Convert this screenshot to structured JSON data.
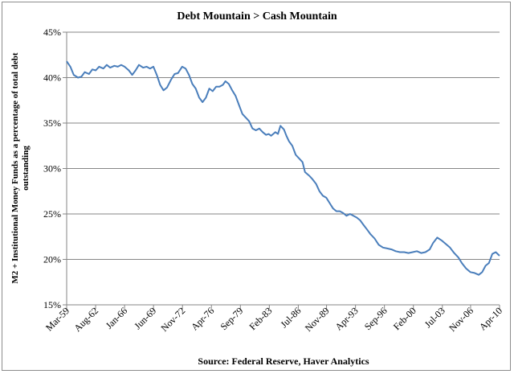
{
  "chart_data": {
    "type": "line",
    "title": "Debt Mountain > Cash Mountain",
    "ylabel_lines": [
      "M2 + Institutional Money Funds as a percentage of total debt",
      "outstanding"
    ],
    "xlabel": "",
    "source": "Source:  Federal Reserve, Haver Analytics",
    "ylim": [
      15,
      45
    ],
    "y_ticks": [
      15,
      20,
      25,
      30,
      35,
      40,
      45
    ],
    "y_tick_labels": [
      "15%",
      "20%",
      "25%",
      "30%",
      "35%",
      "40%",
      "45%"
    ],
    "xlim": [
      1959.167,
      2010.25
    ],
    "x_ticks": [
      1959.167,
      1962.583,
      1966.0,
      1969.417,
      1972.833,
      1976.25,
      1979.667,
      1983.083,
      1986.5,
      1989.833,
      1993.25,
      1996.667,
      2000.083,
      2003.5,
      2006.833,
      2010.25
    ],
    "x_tick_labels": [
      "Mar-59",
      "Aug-62",
      "Jan-66",
      "Jun-69",
      "Nov-72",
      "Apr-76",
      "Sep-79",
      "Feb-83",
      "Jul-86",
      "Nov-89",
      "Apr-93",
      "Sep-96",
      "Feb-00",
      "Jul-03",
      "Nov-06",
      "Apr-10"
    ],
    "grid": "horizontal",
    "legend": "none",
    "series": [
      {
        "color": "#4a7ebb",
        "points": [
          [
            1959.17,
            41.8
          ],
          [
            1959.6,
            41.2
          ],
          [
            1960.0,
            40.3
          ],
          [
            1960.5,
            40.0
          ],
          [
            1960.9,
            40.1
          ],
          [
            1961.3,
            40.6
          ],
          [
            1961.8,
            40.4
          ],
          [
            1962.2,
            40.9
          ],
          [
            1962.6,
            40.8
          ],
          [
            1963.0,
            41.2
          ],
          [
            1963.5,
            41.0
          ],
          [
            1963.9,
            41.4
          ],
          [
            1964.3,
            41.1
          ],
          [
            1964.8,
            41.3
          ],
          [
            1965.2,
            41.2
          ],
          [
            1965.6,
            41.4
          ],
          [
            1966.0,
            41.2
          ],
          [
            1966.5,
            40.8
          ],
          [
            1966.9,
            40.3
          ],
          [
            1967.3,
            40.8
          ],
          [
            1967.7,
            41.4
          ],
          [
            1968.2,
            41.1
          ],
          [
            1968.6,
            41.2
          ],
          [
            1969.0,
            41.0
          ],
          [
            1969.4,
            41.2
          ],
          [
            1969.8,
            40.3
          ],
          [
            1970.2,
            39.2
          ],
          [
            1970.6,
            38.6
          ],
          [
            1971.0,
            38.9
          ],
          [
            1971.5,
            39.8
          ],
          [
            1971.9,
            40.4
          ],
          [
            1972.3,
            40.5
          ],
          [
            1972.8,
            41.2
          ],
          [
            1973.2,
            41.0
          ],
          [
            1973.6,
            40.3
          ],
          [
            1974.0,
            39.3
          ],
          [
            1974.4,
            38.8
          ],
          [
            1974.8,
            37.8
          ],
          [
            1975.2,
            37.3
          ],
          [
            1975.6,
            37.8
          ],
          [
            1976.0,
            38.8
          ],
          [
            1976.4,
            38.5
          ],
          [
            1976.8,
            39.0
          ],
          [
            1977.2,
            39.0
          ],
          [
            1977.6,
            39.2
          ],
          [
            1977.9,
            39.6
          ],
          [
            1978.3,
            39.3
          ],
          [
            1978.7,
            38.6
          ],
          [
            1979.1,
            38.0
          ],
          [
            1979.5,
            37.0
          ],
          [
            1979.9,
            36.0
          ],
          [
            1980.3,
            35.6
          ],
          [
            1980.7,
            35.2
          ],
          [
            1981.1,
            34.4
          ],
          [
            1981.5,
            34.2
          ],
          [
            1981.9,
            34.4
          ],
          [
            1982.3,
            34.0
          ],
          [
            1982.7,
            33.7
          ],
          [
            1983.0,
            33.8
          ],
          [
            1983.3,
            33.6
          ],
          [
            1983.8,
            34.0
          ],
          [
            1984.1,
            33.8
          ],
          [
            1984.4,
            34.7
          ],
          [
            1984.8,
            34.3
          ],
          [
            1985.1,
            33.6
          ],
          [
            1985.4,
            33.0
          ],
          [
            1985.8,
            32.5
          ],
          [
            1986.2,
            31.5
          ],
          [
            1986.6,
            31.1
          ],
          [
            1987.0,
            30.7
          ],
          [
            1987.3,
            29.6
          ],
          [
            1987.8,
            29.2
          ],
          [
            1988.2,
            28.8
          ],
          [
            1988.6,
            28.3
          ],
          [
            1989.0,
            27.5
          ],
          [
            1989.4,
            27.0
          ],
          [
            1989.8,
            26.8
          ],
          [
            1990.2,
            26.2
          ],
          [
            1990.6,
            25.6
          ],
          [
            1991.0,
            25.3
          ],
          [
            1991.4,
            25.3
          ],
          [
            1991.8,
            25.1
          ],
          [
            1992.2,
            24.8
          ],
          [
            1992.6,
            25.0
          ],
          [
            1993.0,
            24.8
          ],
          [
            1993.4,
            24.6
          ],
          [
            1993.8,
            24.3
          ],
          [
            1994.2,
            23.8
          ],
          [
            1994.6,
            23.3
          ],
          [
            1995.0,
            22.8
          ],
          [
            1995.5,
            22.3
          ],
          [
            1996.0,
            21.6
          ],
          [
            1996.5,
            21.3
          ],
          [
            1997.0,
            21.2
          ],
          [
            1997.5,
            21.1
          ],
          [
            1998.0,
            20.9
          ],
          [
            1998.5,
            20.8
          ],
          [
            1999.0,
            20.8
          ],
          [
            1999.5,
            20.7
          ],
          [
            2000.0,
            20.8
          ],
          [
            2000.5,
            20.9
          ],
          [
            2001.0,
            20.7
          ],
          [
            2001.5,
            20.8
          ],
          [
            2002.0,
            21.1
          ],
          [
            2002.4,
            21.8
          ],
          [
            2002.9,
            22.4
          ],
          [
            2003.4,
            22.1
          ],
          [
            2003.9,
            21.7
          ],
          [
            2004.4,
            21.3
          ],
          [
            2004.9,
            20.7
          ],
          [
            2005.4,
            20.2
          ],
          [
            2005.8,
            19.6
          ],
          [
            2006.3,
            19.0
          ],
          [
            2006.8,
            18.6
          ],
          [
            2007.3,
            18.5
          ],
          [
            2007.8,
            18.3
          ],
          [
            2008.2,
            18.6
          ],
          [
            2008.6,
            19.3
          ],
          [
            2009.0,
            19.6
          ],
          [
            2009.4,
            20.6
          ],
          [
            2009.8,
            20.8
          ],
          [
            2010.25,
            20.4
          ]
        ]
      }
    ]
  }
}
